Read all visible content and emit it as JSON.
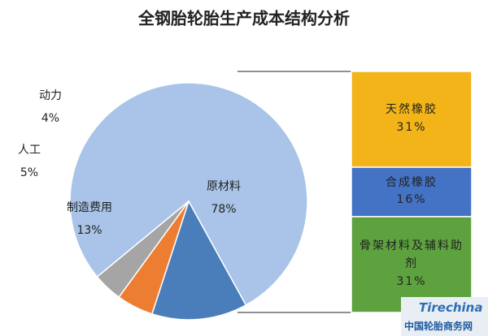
{
  "chart_data": {
    "type": "bar-of-pie",
    "title": "全钢胎轮胎生产成本结构分析",
    "pie": {
      "categories": [
        "原材料",
        "制造费用",
        "人工",
        "动力"
      ],
      "values": [
        78,
        13,
        5,
        4
      ],
      "value_labels": [
        "78%",
        "13%",
        "5%",
        "4%"
      ],
      "colors": [
        "#a9c4e8",
        "#4a7ebb",
        "#ed7d31",
        "#a5a5a5"
      ]
    },
    "bar": {
      "categories": [
        "天然橡胶",
        "合成橡胶",
        "骨架材料及辅料助剂"
      ],
      "values": [
        31,
        16,
        31
      ],
      "value_labels": [
        "31%",
        "16%",
        "31%"
      ],
      "colors": [
        "#f2b418",
        "#4472c4",
        "#5da23f"
      ]
    }
  },
  "watermark": {
    "logo": "Tirechina",
    "text": "中国轮胎商务网"
  }
}
